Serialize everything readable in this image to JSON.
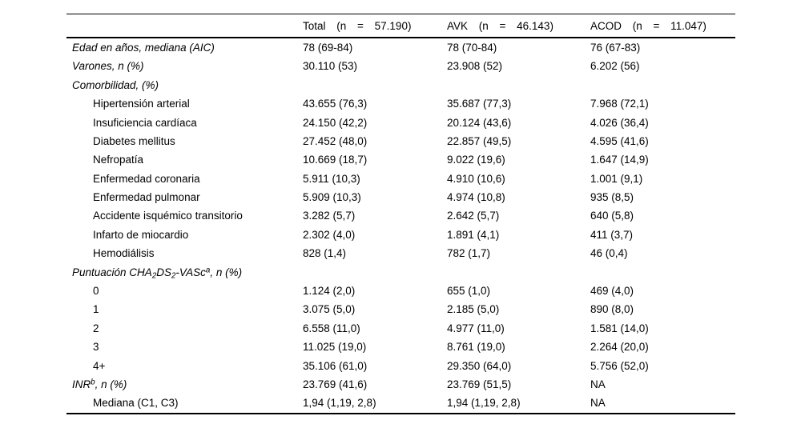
{
  "table": {
    "header": {
      "row_label_col": "",
      "columns": [
        "Total (n = 57.190)",
        "AVK (n = 46.143)",
        "ACOD (n = 11.047)"
      ]
    },
    "rows": [
      {
        "label": "Edad en años, mediana (AIC)",
        "italic": true,
        "indent": 0,
        "values": [
          "78 (69-84)",
          "78 (70-84)",
          "76 (67-83)"
        ]
      },
      {
        "label": "Varones, n (%)",
        "italic": true,
        "indent": 0,
        "values": [
          "30.110 (53)",
          "23.908 (52)",
          "6.202 (56)"
        ]
      },
      {
        "label": "Comorbilidad, (%)",
        "italic": true,
        "indent": 0,
        "values": [
          "",
          "",
          ""
        ]
      },
      {
        "label": "Hipertensión arterial",
        "italic": false,
        "indent": 1,
        "values": [
          "43.655 (76,3)",
          "35.687 (77,3)",
          "7.968 (72,1)"
        ]
      },
      {
        "label": "Insuficiencia cardíaca",
        "italic": false,
        "indent": 1,
        "values": [
          "24.150 (42,2)",
          "20.124 (43,6)",
          "4.026 (36,4)"
        ]
      },
      {
        "label": "Diabetes mellitus",
        "italic": false,
        "indent": 1,
        "values": [
          "27.452 (48,0)",
          "22.857 (49,5)",
          "4.595 (41,6)"
        ]
      },
      {
        "label": "Nefropatía",
        "italic": false,
        "indent": 1,
        "values": [
          "10.669 (18,7)",
          "9.022 (19,6)",
          "1.647 (14,9)"
        ]
      },
      {
        "label": "Enfermedad coronaria",
        "italic": false,
        "indent": 1,
        "values": [
          "5.911 (10,3)",
          "4.910 (10,6)",
          "1.001 (9,1)"
        ]
      },
      {
        "label": "Enfermedad pulmonar",
        "italic": false,
        "indent": 1,
        "values": [
          "5.909 (10,3)",
          "4.974 (10,8)",
          "935 (8,5)"
        ]
      },
      {
        "label": "Accidente isquémico transitorio",
        "italic": false,
        "indent": 1,
        "values": [
          "3.282 (5,7)",
          "2.642 (5,7)",
          "640 (5,8)"
        ]
      },
      {
        "label": "Infarto de miocardio",
        "italic": false,
        "indent": 1,
        "values": [
          "2.302 (4,0)",
          "1.891 (4,1)",
          "411 (3,7)"
        ]
      },
      {
        "label": "Hemodiálisis",
        "italic": false,
        "indent": 1,
        "values": [
          "828 (1,4)",
          "782 (1,7)",
          "46 (0,4)"
        ]
      },
      {
        "label_segments": [
          {
            "text": "Puntuación CHA"
          },
          {
            "text": "2",
            "style": "sub"
          },
          {
            "text": "DS"
          },
          {
            "text": "2",
            "style": "sub"
          },
          {
            "text": "-VASc"
          },
          {
            "text": "a",
            "style": "sup"
          },
          {
            "text": ", n (%)"
          }
        ],
        "italic": true,
        "indent": 0,
        "values": [
          "",
          "",
          ""
        ]
      },
      {
        "label": "0",
        "italic": false,
        "indent": 1,
        "values": [
          "1.124 (2,0)",
          "655 (1,0)",
          "469 (4,0)"
        ]
      },
      {
        "label": "1",
        "italic": false,
        "indent": 1,
        "values": [
          "3.075 (5,0)",
          "2.185 (5,0)",
          "890 (8,0)"
        ]
      },
      {
        "label": "2",
        "italic": false,
        "indent": 1,
        "values": [
          "6.558 (11,0)",
          "4.977 (11,0)",
          "1.581 (14,0)"
        ]
      },
      {
        "label": "3",
        "italic": false,
        "indent": 1,
        "values": [
          "11.025 (19,0)",
          "8.761 (19,0)",
          "2.264 (20,0)"
        ]
      },
      {
        "label": "4+",
        "italic": false,
        "indent": 1,
        "values": [
          "35.106 (61,0)",
          "29.350 (64,0)",
          "5.756 (52,0)"
        ]
      },
      {
        "label_segments": [
          {
            "text": "INR"
          },
          {
            "text": "b",
            "style": "sup"
          },
          {
            "text": ", n (%)"
          }
        ],
        "italic": true,
        "indent": 0,
        "values": [
          "23.769 (41,6)",
          "23.769 (51,5)",
          "NA"
        ]
      },
      {
        "label": "Mediana (C1, C3)",
        "italic": false,
        "indent": 1,
        "values": [
          "1,94 (1,19, 2,8)",
          "1,94 (1,19, 2,8)",
          "NA"
        ]
      }
    ]
  }
}
